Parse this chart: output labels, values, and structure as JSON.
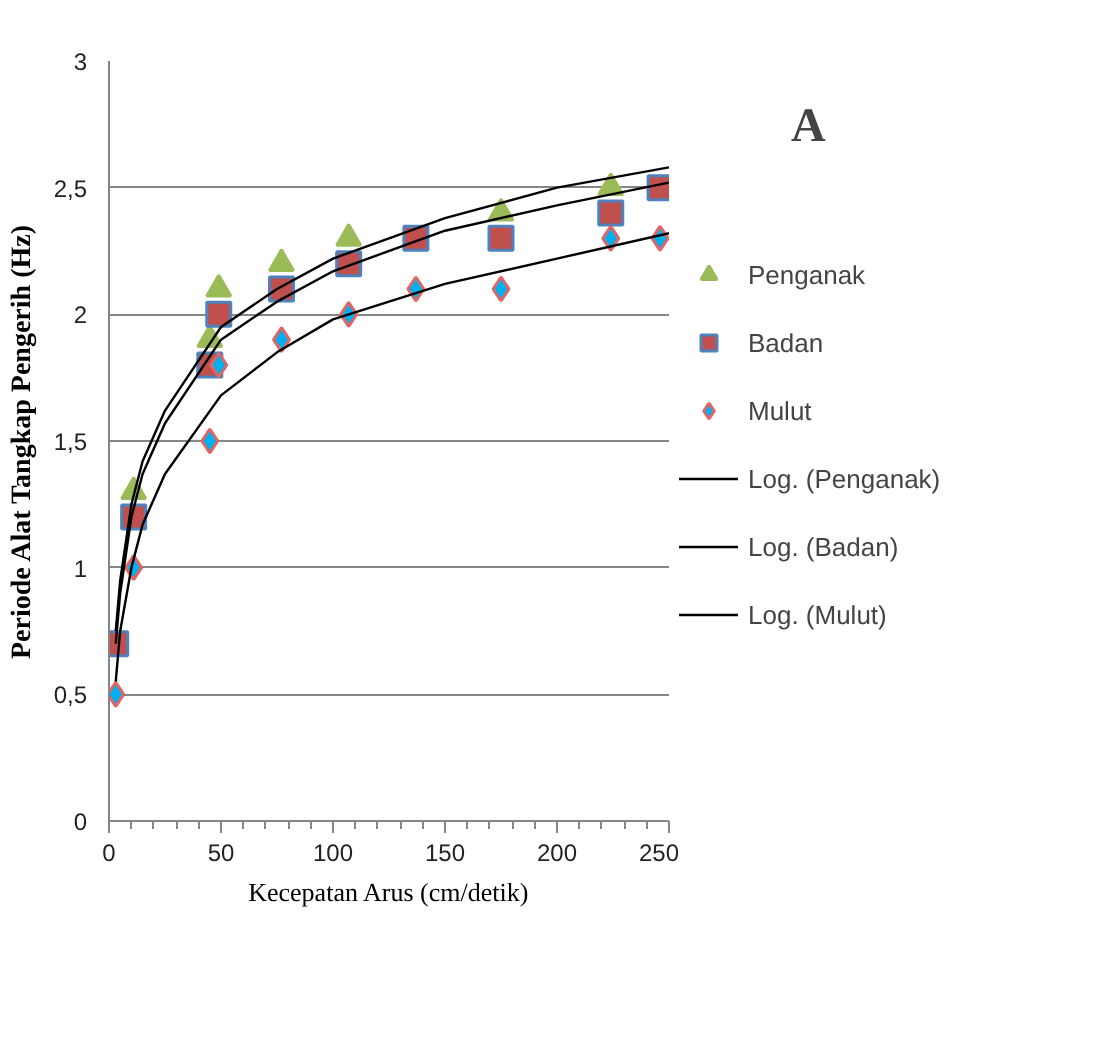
{
  "chart_data": {
    "type": "scatter",
    "xlabel": "Kecepatan Arus (cm/detik)",
    "ylabel": "Periode Alat Tangkap Pengerih (Hz)",
    "annotations": [
      "A"
    ],
    "x": [
      3,
      11,
      45,
      49,
      77,
      107,
      137,
      175,
      224,
      246
    ],
    "series": [
      {
        "name": "Penganak",
        "color": "#9bbb59",
        "marker": "triangle",
        "values": [
          null,
          1.3,
          1.9,
          2.1,
          2.2,
          2.3,
          null,
          2.4,
          2.5,
          null
        ]
      },
      {
        "name": "Badan",
        "color": "#c0504d",
        "marker": "square",
        "values": [
          0.7,
          1.2,
          1.8,
          2.0,
          2.1,
          2.2,
          2.3,
          2.3,
          2.4,
          2.5
        ]
      },
      {
        "name": "Mulut",
        "color": "#00b0f0",
        "marker": "diamond",
        "values": [
          0.5,
          1.0,
          1.5,
          1.8,
          1.9,
          2.0,
          2.1,
          2.1,
          2.3,
          2.3
        ]
      },
      {
        "name": "Log. (Penganak)",
        "type": "line",
        "color": "#000000",
        "x": [
          3,
          5,
          10,
          15,
          25,
          50,
          75,
          100,
          150,
          200,
          250
        ],
        "values": [
          0.75,
          0.95,
          1.25,
          1.42,
          1.62,
          1.95,
          2.1,
          2.22,
          2.38,
          2.5,
          2.58
        ]
      },
      {
        "name": "Log. (Badan)",
        "type": "line",
        "color": "#000000",
        "x": [
          3,
          5,
          10,
          15,
          25,
          50,
          75,
          100,
          150,
          200,
          250
        ],
        "values": [
          0.7,
          0.9,
          1.2,
          1.37,
          1.57,
          1.9,
          2.05,
          2.17,
          2.33,
          2.43,
          2.52
        ]
      },
      {
        "name": "Log. (Mulut)",
        "type": "line",
        "color": "#000000",
        "x": [
          3,
          5,
          10,
          15,
          25,
          50,
          75,
          100,
          150,
          200,
          250
        ],
        "values": [
          0.55,
          0.75,
          1.0,
          1.17,
          1.37,
          1.68,
          1.85,
          1.98,
          2.12,
          2.22,
          2.32
        ]
      }
    ],
    "xlim": [
      0,
      250
    ],
    "xticks": [
      0,
      50,
      100,
      150,
      200,
      250
    ],
    "ylim": [
      0,
      3
    ],
    "yticks": [
      0,
      {
        "value": 0.5,
        "label": "0,5"
      },
      1,
      {
        "value": 1.5,
        "label": "1,5"
      },
      2,
      {
        "value": 2.5,
        "label": "2,5"
      },
      3
    ],
    "grid": "y",
    "legend": "right"
  }
}
